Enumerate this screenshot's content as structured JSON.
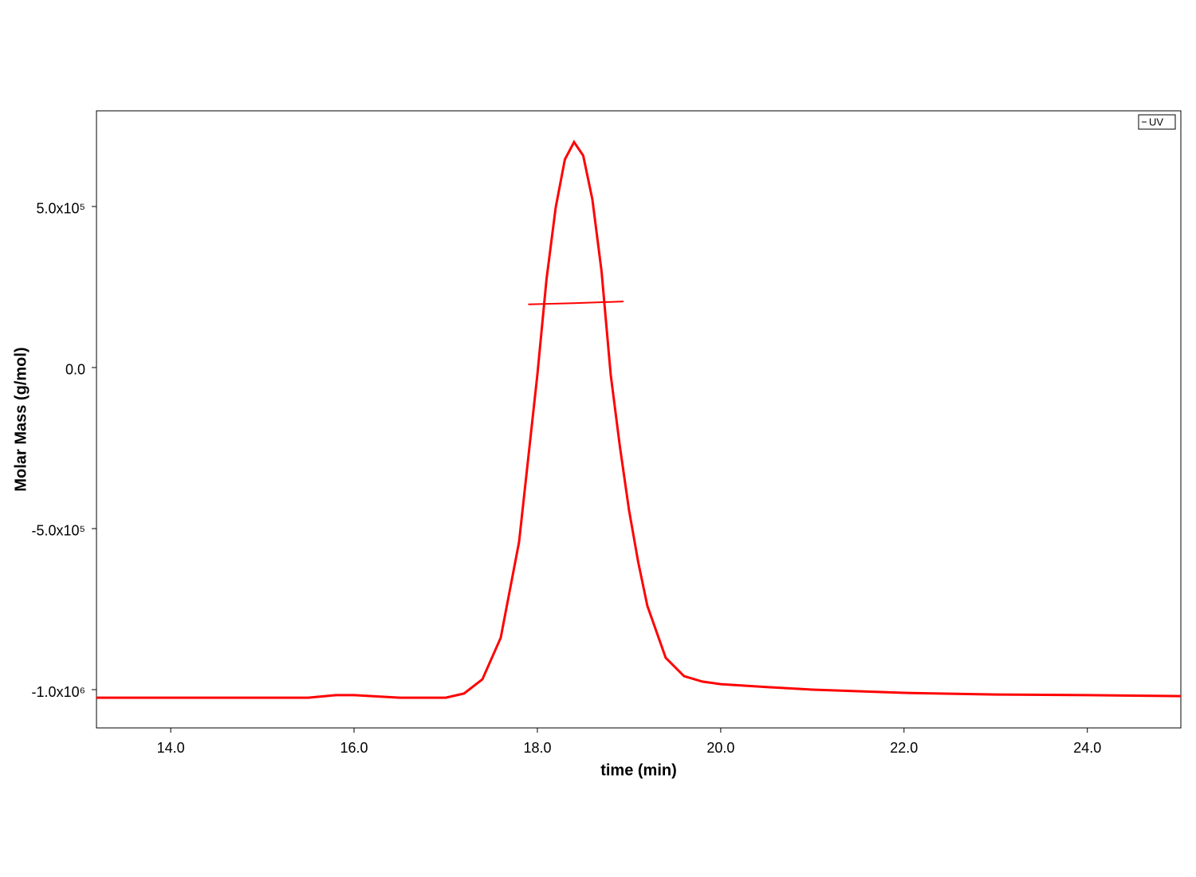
{
  "chart_data": {
    "type": "line",
    "xlabel": "time (min)",
    "ylabel": "Molar Mass (g/mol)",
    "xlim": [
      13.19,
      25.02
    ],
    "ylim": [
      -1118800,
      797000
    ],
    "xticks": [
      {
        "value": 14,
        "label": "14.0"
      },
      {
        "value": 16,
        "label": "16.0"
      },
      {
        "value": 18,
        "label": "18.0"
      },
      {
        "value": 20,
        "label": "20.0"
      },
      {
        "value": 22,
        "label": "22.0"
      },
      {
        "value": 24,
        "label": "24.0"
      }
    ],
    "yticks": [
      {
        "value": -1000000,
        "label": "-1.0x10⁶"
      },
      {
        "value": -500000,
        "label": "-5.0x10⁵"
      },
      {
        "value": 0,
        "label": "0.0"
      },
      {
        "value": 500000,
        "label": "5.0x10⁵"
      }
    ],
    "grid": false,
    "legend": "upper right",
    "series": [
      {
        "name": "UV",
        "color": "#ff0000",
        "x": [
          13.19,
          15.5,
          15.8,
          16.0,
          16.5,
          17.0,
          17.2,
          17.4,
          17.6,
          17.8,
          18.0,
          18.1,
          18.2,
          18.3,
          18.4,
          18.5,
          18.6,
          18.7,
          18.8,
          18.9,
          19.0,
          19.1,
          19.2,
          19.4,
          19.6,
          19.8,
          20.0,
          20.5,
          21.0,
          22.0,
          23.0,
          24.0,
          25.02
        ],
        "values": [
          -1025000,
          -1025000,
          -1017000,
          -1017000,
          -1025000,
          -1025000,
          -1012000,
          -968000,
          -839000,
          -542000,
          -22000,
          275000,
          497000,
          646000,
          700000,
          658000,
          522000,
          299000,
          -22000,
          -245000,
          -443000,
          -604000,
          -740000,
          -901000,
          -958000,
          -975000,
          -983000,
          -992000,
          -1000000,
          -1010000,
          -1015000,
          -1017000,
          -1020000
        ]
      },
      {
        "color": "#ff0000",
        "x": [
          17.9,
          18.4,
          18.94
        ],
        "values": [
          196000,
          200000,
          205000
        ]
      }
    ]
  }
}
